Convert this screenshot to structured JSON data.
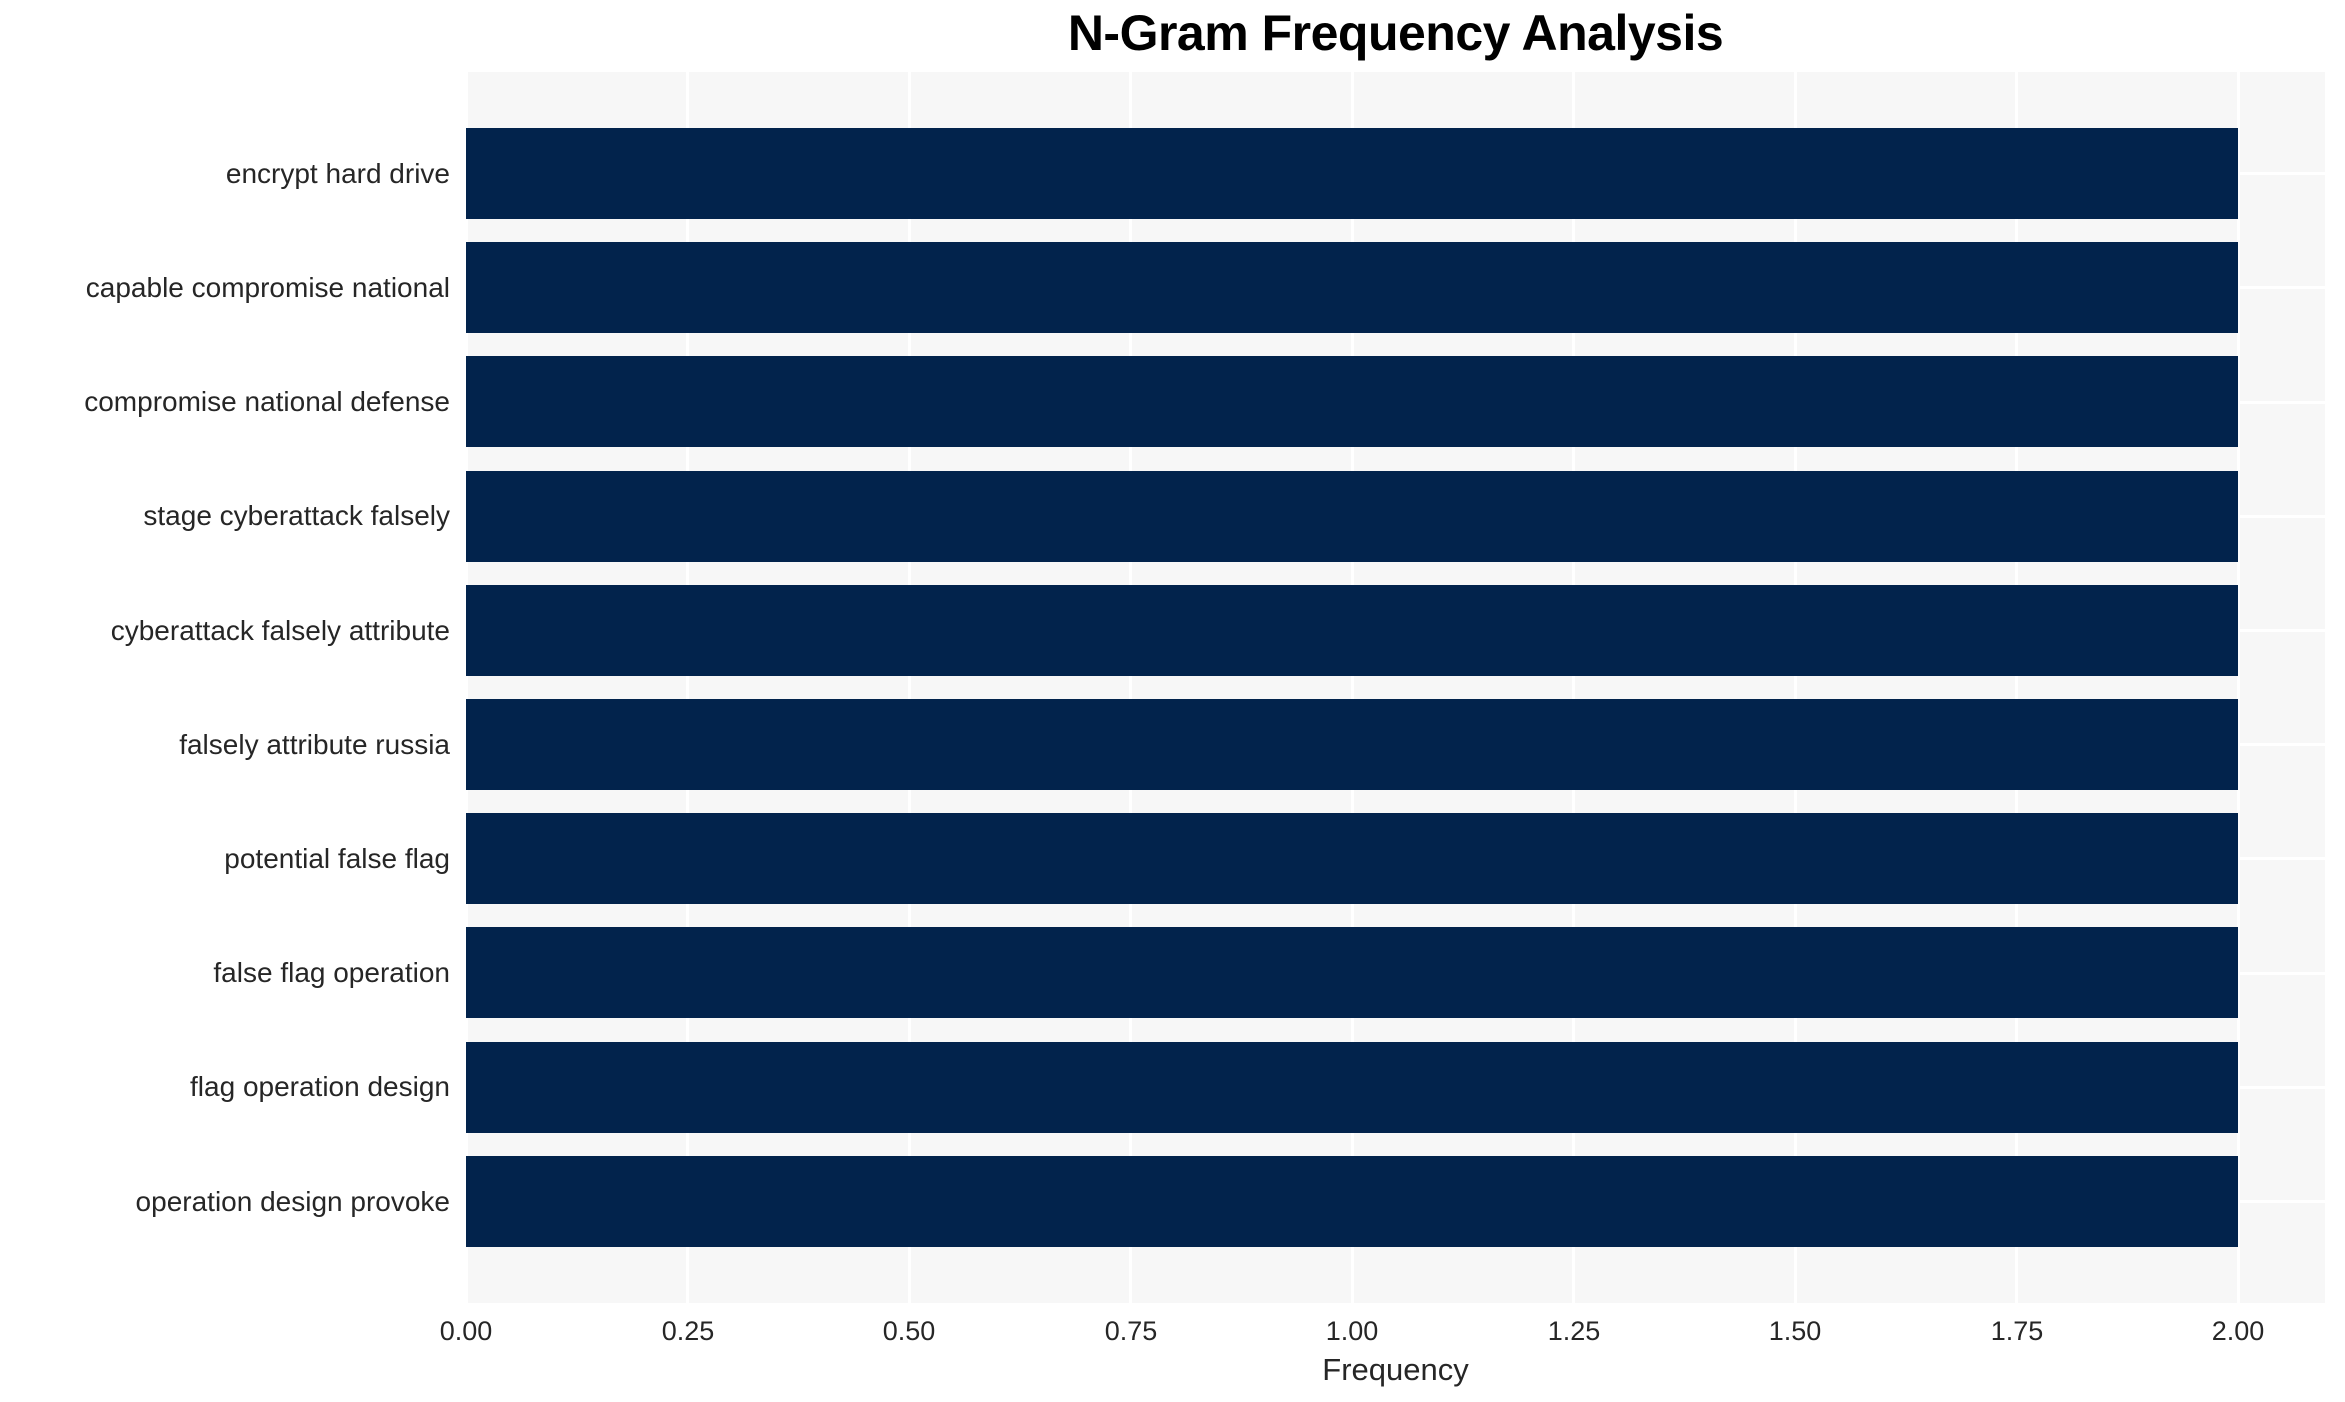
{
  "chart_data": {
    "type": "bar",
    "orientation": "horizontal",
    "title": "N-Gram Frequency Analysis",
    "xlabel": "Frequency",
    "ylabel": "",
    "categories": [
      "encrypt hard drive",
      "capable compromise national",
      "compromise national defense",
      "stage cyberattack falsely",
      "cyberattack falsely attribute",
      "falsely attribute russia",
      "potential false flag",
      "false flag operation",
      "flag operation design",
      "operation design provoke"
    ],
    "values": [
      2,
      2,
      2,
      2,
      2,
      2,
      2,
      2,
      2,
      2
    ],
    "x_ticks": [
      0.0,
      0.25,
      0.5,
      0.75,
      1.0,
      1.25,
      1.5,
      1.75,
      2.0
    ],
    "x_tick_labels": [
      "0.00",
      "0.25",
      "0.50",
      "0.75",
      "1.00",
      "1.25",
      "1.50",
      "1.75",
      "2.00"
    ],
    "xlim": [
      0,
      2.1
    ],
    "grid": true,
    "legend": false,
    "colors": {
      "bar": "#02234c",
      "plot_background": "#f7f7f7",
      "gridline": "#ffffff",
      "tick_text": "#262626",
      "title_text": "#000000"
    }
  }
}
